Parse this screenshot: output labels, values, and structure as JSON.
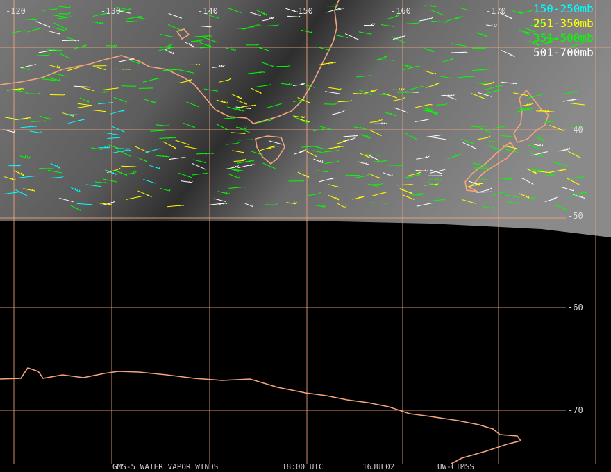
{
  "map": {
    "longitude_labels": [
      "-120",
      "-130",
      "-140",
      "-150",
      "-160",
      "-170"
    ],
    "latitude_labels": [
      "-40",
      "-50",
      "-60",
      "-70"
    ],
    "legend": [
      {
        "label": "150-250mb",
        "color": "#00ffff"
      },
      {
        "label": "251-350mb",
        "color": "#ffff00"
      },
      {
        "label": "351-500mb",
        "color": "#00ff00"
      },
      {
        "label": "501-700mb",
        "color": "#ffffff"
      }
    ],
    "footer": {
      "product": "GMS-5 WATER VAPOR WINDS",
      "time": "18:00 UTC",
      "date": "16JUL02",
      "source": "UW-CIMSS"
    }
  }
}
